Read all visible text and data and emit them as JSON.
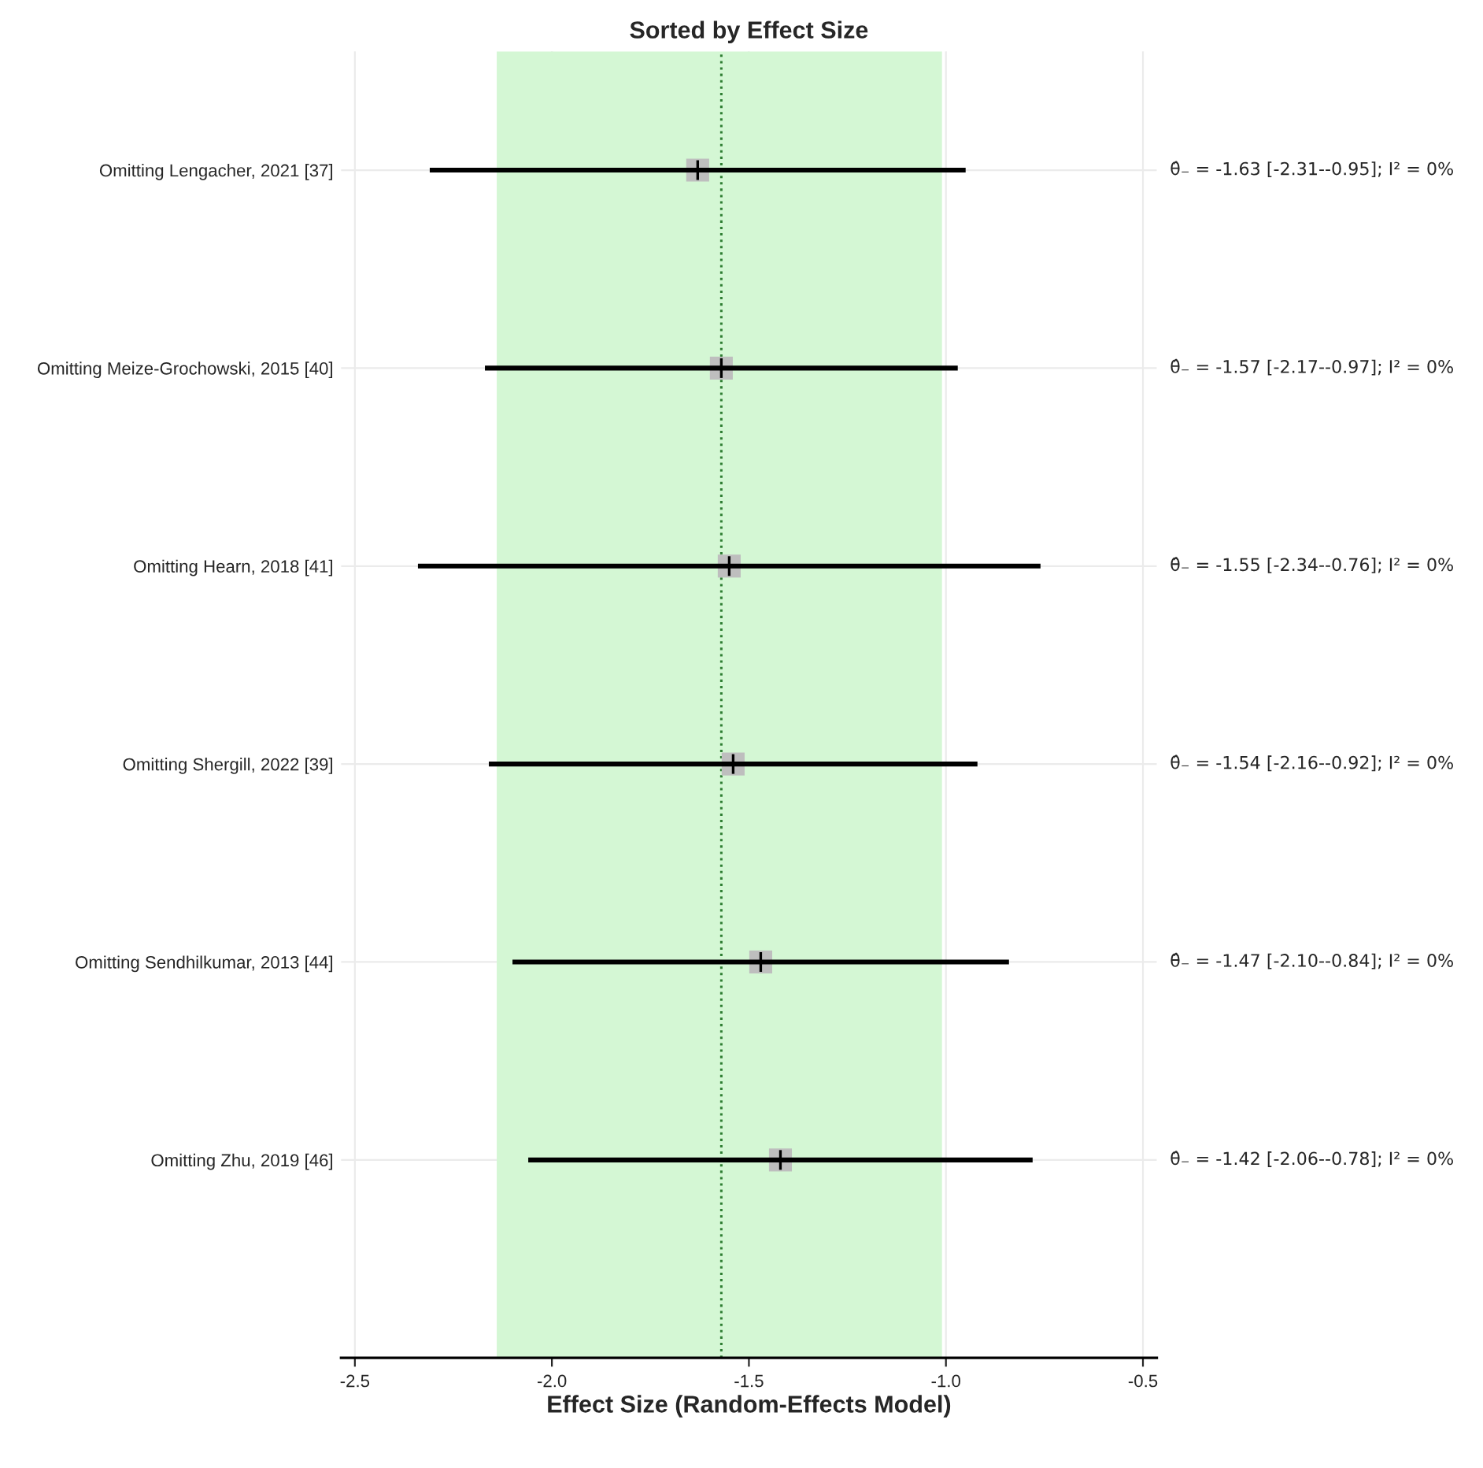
{
  "chart_data": {
    "type": "scatter",
    "orientation": "horizontal",
    "title": "Sorted by Effect Size",
    "xlabel": "Effect Size (Random-Effects Model)",
    "categories": [
      "Omitting Lengacher, 2021 [37]",
      "Omitting Meize-Grochowski, 2015 [40]",
      "Omitting Hearn, 2018 [41]",
      "Omitting Shergill, 2022 [39]",
      "Omitting Sendhilkumar, 2013 [44]",
      "Omitting Zhu, 2019 [46]"
    ],
    "values": [
      -1.63,
      -1.57,
      -1.55,
      -1.54,
      -1.47,
      -1.42
    ],
    "errors": [
      [
        -2.31,
        -0.95
      ],
      [
        -2.17,
        -0.97
      ],
      [
        -2.34,
        -0.76
      ],
      [
        -2.16,
        -0.92
      ],
      [
        -2.1,
        -0.84
      ],
      [
        -2.06,
        -0.78
      ]
    ],
    "value_labels": [
      "θ̂₋ = -1.63 [-2.31--0.95]; I² = 0%",
      "θ̂₋ = -1.57 [-2.17--0.97]; I² = 0%",
      "θ̂₋ = -1.55 [-2.34--0.76]; I² = 0%",
      "θ̂₋ = -1.54 [-2.16--0.92]; I² = 0%",
      "θ̂₋ = -1.47 [-2.10--0.84]; I² = 0%",
      "θ̂₋ = -1.42 [-2.06--0.78]; I² = 0%"
    ],
    "color": "#bebebe",
    "marker": "square",
    "xlim": [
      -2.535,
      -0.465
    ],
    "xticks": [
      -2.5,
      {
        "value": -2,
        "label": "-2.0"
      },
      -1.5,
      {
        "value": -1,
        "label": "-1.0"
      },
      -0.5
    ],
    "ref_lines": [
      {
        "axis": "x",
        "value": -1.57,
        "color": "#2e7d32",
        "line_style": "dotted"
      }
    ],
    "bands": [
      {
        "axis": "x",
        "from": -2.14,
        "to": -1.01,
        "color": "#d4f7d4"
      }
    ],
    "grid": true
  }
}
